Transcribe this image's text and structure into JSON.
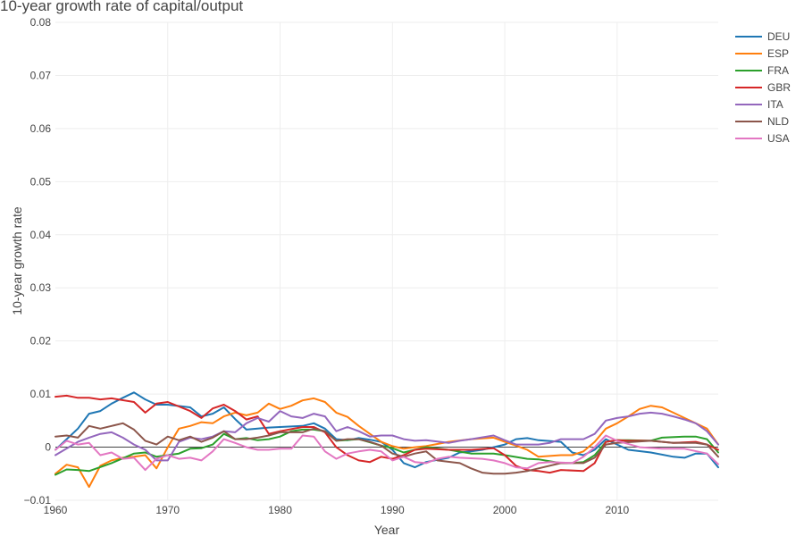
{
  "chart_data": {
    "type": "line",
    "title": "10-year growth rate of capital/output",
    "xlabel": "Year",
    "ylabel": "10-year growth rate",
    "xlim": [
      1960,
      2019
    ],
    "ylim": [
      -0.01,
      0.08
    ],
    "x_ticks": [
      1960,
      1970,
      1980,
      1990,
      2000,
      2010
    ],
    "x_tick_labels": [
      "1960",
      "1970",
      "1980",
      "1990",
      "2000",
      "2010"
    ],
    "y_ticks": [
      -0.01,
      0,
      0.01,
      0.02,
      0.03,
      0.04,
      0.05,
      0.06,
      0.07,
      0.08
    ],
    "y_tick_labels": [
      "−0.01",
      "0",
      "0.01",
      "0.02",
      "0.03",
      "0.04",
      "0.05",
      "0.06",
      "0.07",
      "0.08"
    ],
    "grid": true,
    "legend_position": "top-right",
    "series": [
      {
        "name": "DEU",
        "color": "#1f77b4",
        "x": [
          1960,
          1962,
          1963,
          1964,
          1965,
          1966,
          1967,
          1968,
          1969,
          1970,
          1972,
          1973,
          1974,
          1975,
          1976,
          1977,
          1978,
          1979,
          1980,
          1982,
          1983,
          1984,
          1985,
          1986,
          1987,
          1988,
          1989,
          1990,
          1991,
          1992,
          1993,
          1995,
          1996,
          1997,
          1998,
          1999,
          2000,
          2001,
          2002,
          2003,
          2005,
          2006,
          2007,
          2008,
          2009,
          2010,
          2011,
          2013,
          2015,
          2016,
          2017,
          2018,
          2019
        ],
        "y": [
          -0.0005,
          0.0035,
          0.0063,
          0.0068,
          0.0082,
          0.0093,
          0.0103,
          0.009,
          0.008,
          0.008,
          0.0075,
          0.0058,
          0.0063,
          0.0075,
          0.0053,
          0.0033,
          0.0035,
          0.0037,
          0.0038,
          0.004,
          0.0045,
          0.0035,
          0.0015,
          0.0013,
          0.0017,
          0.0014,
          0.001,
          -0.0005,
          -0.003,
          -0.0038,
          -0.0028,
          -0.002,
          -0.001,
          -0.0008,
          -0.0005,
          0.0,
          0.0005,
          0.0015,
          0.0017,
          0.0013,
          0.001,
          -0.001,
          -0.0015,
          -0.0005,
          0.0015,
          0.0005,
          -0.0005,
          -0.001,
          -0.0018,
          -0.002,
          -0.0012,
          -0.0012,
          -0.0038
        ]
      },
      {
        "name": "ESP",
        "color": "#ff7f0e",
        "x": [
          1960,
          1961,
          1962,
          1963,
          1964,
          1965,
          1966,
          1967,
          1968,
          1969,
          1970,
          1971,
          1972,
          1973,
          1974,
          1975,
          1976,
          1977,
          1978,
          1979,
          1980,
          1981,
          1982,
          1983,
          1984,
          1985,
          1986,
          1987,
          1988,
          1989,
          1990,
          1991,
          1992,
          1993,
          1995,
          1997,
          1999,
          2000,
          2001,
          2002,
          2003,
          2005,
          2006,
          2007,
          2008,
          2009,
          2010,
          2011,
          2012,
          2013,
          2014,
          2015,
          2016,
          2017,
          2018,
          2019
        ],
        "y": [
          -0.005,
          -0.0033,
          -0.0038,
          -0.0075,
          -0.0035,
          -0.0025,
          -0.002,
          -0.0018,
          -0.0015,
          -0.004,
          0.0,
          0.0035,
          0.004,
          0.0047,
          0.0045,
          0.0058,
          0.0065,
          0.006,
          0.0065,
          0.0082,
          0.0072,
          0.0078,
          0.0088,
          0.0092,
          0.0085,
          0.0065,
          0.0057,
          0.004,
          0.0025,
          0.001,
          0.0002,
          -0.0003,
          0.0,
          0.0002,
          0.001,
          0.0015,
          0.0018,
          0.001,
          0.0003,
          -0.0005,
          -0.0018,
          -0.0015,
          -0.0015,
          -0.0008,
          0.001,
          0.0035,
          0.0045,
          0.0058,
          0.0072,
          0.0078,
          0.0075,
          0.0065,
          0.0055,
          0.0045,
          0.0035,
          0.0005
        ]
      },
      {
        "name": "FRA",
        "color": "#2ca02c",
        "x": [
          1960,
          1961,
          1962,
          1963,
          1965,
          1967,
          1968,
          1969,
          1970,
          1971,
          1972,
          1973,
          1974,
          1975,
          1976,
          1977,
          1978,
          1979,
          1980,
          1981,
          1982,
          1983,
          1984,
          1985,
          1987,
          1989,
          1990,
          1991,
          1992,
          1993,
          1995,
          1997,
          1999,
          2000,
          2002,
          2003,
          2005,
          2006,
          2007,
          2008,
          2009,
          2010,
          2011,
          2013,
          2014,
          2016,
          2017,
          2018,
          2019
        ],
        "y": [
          -0.0052,
          -0.0042,
          -0.0043,
          -0.0045,
          -0.003,
          -0.0012,
          -0.001,
          -0.0018,
          -0.0015,
          -0.0012,
          -0.0003,
          -0.0002,
          0.0005,
          0.0025,
          0.0015,
          0.0017,
          0.0013,
          0.0015,
          0.002,
          0.003,
          0.0033,
          0.0033,
          0.003,
          0.0012,
          0.0015,
          0.0003,
          -0.0002,
          -0.001,
          -0.0005,
          0.0,
          -0.0005,
          -0.0012,
          -0.0012,
          -0.0015,
          -0.0022,
          -0.0023,
          -0.003,
          -0.003,
          -0.0028,
          -0.0015,
          0.001,
          0.0013,
          0.0013,
          0.0012,
          0.0018,
          0.002,
          0.002,
          0.0015,
          -0.001
        ]
      },
      {
        "name": "GBR",
        "color": "#d62728",
        "x": [
          1960,
          1961,
          1962,
          1963,
          1964,
          1965,
          1967,
          1968,
          1969,
          1970,
          1972,
          1973,
          1974,
          1975,
          1976,
          1977,
          1978,
          1979,
          1980,
          1982,
          1983,
          1984,
          1985,
          1986,
          1987,
          1988,
          1989,
          1990,
          1991,
          1992,
          1993,
          1995,
          1997,
          1999,
          2000,
          2001,
          2002,
          2003,
          2004,
          2005,
          2007,
          2008,
          2009,
          2010,
          2011,
          2013,
          2015,
          2017,
          2018,
          2019
        ],
        "y": [
          0.0095,
          0.0097,
          0.0093,
          0.0093,
          0.009,
          0.0092,
          0.0085,
          0.0065,
          0.0082,
          0.0085,
          0.0068,
          0.0055,
          0.0073,
          0.008,
          0.0068,
          0.0052,
          0.0058,
          0.0025,
          0.003,
          0.0038,
          0.0038,
          0.0028,
          0.0,
          -0.0015,
          -0.0025,
          -0.0028,
          -0.0018,
          -0.0022,
          -0.0015,
          -0.0005,
          -0.0003,
          -0.0005,
          -0.0005,
          -0.0002,
          -0.0015,
          -0.0035,
          -0.0043,
          -0.0045,
          -0.0048,
          -0.0043,
          -0.0045,
          -0.003,
          0.001,
          0.0013,
          0.0012,
          0.0012,
          0.0008,
          0.001,
          0.0005,
          -0.0005
        ]
      },
      {
        "name": "ITA",
        "color": "#9467bd",
        "x": [
          1960,
          1962,
          1963,
          1964,
          1965,
          1966,
          1967,
          1968,
          1969,
          1970,
          1971,
          1972,
          1973,
          1974,
          1975,
          1976,
          1977,
          1978,
          1979,
          1980,
          1981,
          1982,
          1983,
          1984,
          1985,
          1986,
          1987,
          1988,
          1989,
          1990,
          1991,
          1992,
          1993,
          1995,
          1996,
          1997,
          1999,
          2000,
          2001,
          2003,
          2004,
          2005,
          2007,
          2008,
          2009,
          2010,
          2011,
          2012,
          2013,
          2014,
          2015,
          2016,
          2017,
          2018,
          2019
        ],
        "y": [
          -0.0015,
          0.001,
          0.0018,
          0.0025,
          0.0028,
          0.0018,
          0.0005,
          -0.0005,
          -0.0025,
          -0.0025,
          0.001,
          0.0018,
          0.0015,
          0.002,
          0.003,
          0.0028,
          0.0045,
          0.0055,
          0.0048,
          0.0068,
          0.0058,
          0.0055,
          0.0063,
          0.0058,
          0.003,
          0.0038,
          0.003,
          0.002,
          0.0022,
          0.0022,
          0.0015,
          0.0012,
          0.0013,
          0.0008,
          0.0012,
          0.0015,
          0.0022,
          0.0013,
          0.0005,
          0.0005,
          0.0008,
          0.0015,
          0.0015,
          0.0025,
          0.005,
          0.0055,
          0.0058,
          0.0063,
          0.0065,
          0.0063,
          0.0058,
          0.0052,
          0.0045,
          0.003,
          0.0005
        ]
      },
      {
        "name": "NLD",
        "color": "#8c564b",
        "x": [
          1960,
          1961,
          1962,
          1963,
          1964,
          1965,
          1966,
          1967,
          1968,
          1969,
          1970,
          1971,
          1972,
          1973,
          1974,
          1975,
          1976,
          1977,
          1978,
          1979,
          1980,
          1982,
          1983,
          1984,
          1985,
          1986,
          1987,
          1988,
          1989,
          1990,
          1991,
          1992,
          1993,
          1994,
          1996,
          1997,
          1998,
          1999,
          2000,
          2001,
          2002,
          2003,
          2005,
          2007,
          2008,
          2009,
          2010,
          2013,
          2015,
          2017,
          2018,
          2019
        ],
        "y": [
          0.002,
          0.0022,
          0.0018,
          0.004,
          0.0035,
          0.004,
          0.0045,
          0.0033,
          0.0012,
          0.0005,
          0.002,
          0.0013,
          0.002,
          0.001,
          0.0018,
          0.003,
          0.0015,
          0.0015,
          0.0018,
          0.0022,
          0.0028,
          0.0028,
          0.0035,
          0.003,
          0.0012,
          0.0015,
          0.0015,
          0.001,
          0.0003,
          -0.0012,
          -0.0018,
          -0.0012,
          -0.0008,
          -0.0025,
          -0.003,
          -0.004,
          -0.0048,
          -0.005,
          -0.005,
          -0.0048,
          -0.0045,
          -0.004,
          -0.003,
          -0.003,
          -0.002,
          0.0005,
          0.0008,
          0.0012,
          0.0008,
          0.0008,
          0.0005,
          -0.0018
        ]
      },
      {
        "name": "USA",
        "color": "#e377c2",
        "x": [
          1960,
          1961,
          1962,
          1963,
          1964,
          1965,
          1966,
          1967,
          1968,
          1969,
          1970,
          1971,
          1972,
          1973,
          1974,
          1975,
          1976,
          1977,
          1978,
          1979,
          1980,
          1981,
          1982,
          1983,
          1984,
          1985,
          1986,
          1987,
          1988,
          1989,
          1990,
          1991,
          1992,
          1993,
          1994,
          1995,
          1996,
          1998,
          1999,
          2000,
          2001,
          2002,
          2003,
          2004,
          2006,
          2007,
          2008,
          2009,
          2010,
          2012,
          2014,
          2016,
          2018,
          2019
        ],
        "y": [
          -0.0005,
          0.0012,
          0.0005,
          0.0008,
          -0.0015,
          -0.001,
          -0.0022,
          -0.002,
          -0.0043,
          -0.0022,
          -0.0015,
          -0.0022,
          -0.002,
          -0.0025,
          -0.0008,
          0.0015,
          0.0008,
          0.0,
          -0.0005,
          -0.0005,
          -0.0003,
          -0.0003,
          0.0022,
          0.002,
          -0.0008,
          -0.0022,
          -0.0012,
          -0.0008,
          -0.0005,
          -0.0008,
          -0.0025,
          -0.0018,
          -0.0028,
          -0.003,
          -0.0022,
          -0.0018,
          -0.002,
          -0.0022,
          -0.0025,
          -0.003,
          -0.0038,
          -0.004,
          -0.003,
          -0.0028,
          -0.003,
          -0.0018,
          0.0,
          0.0022,
          0.0012,
          0.0,
          -0.0003,
          -0.0003,
          -0.0012,
          -0.0032
        ]
      }
    ]
  }
}
